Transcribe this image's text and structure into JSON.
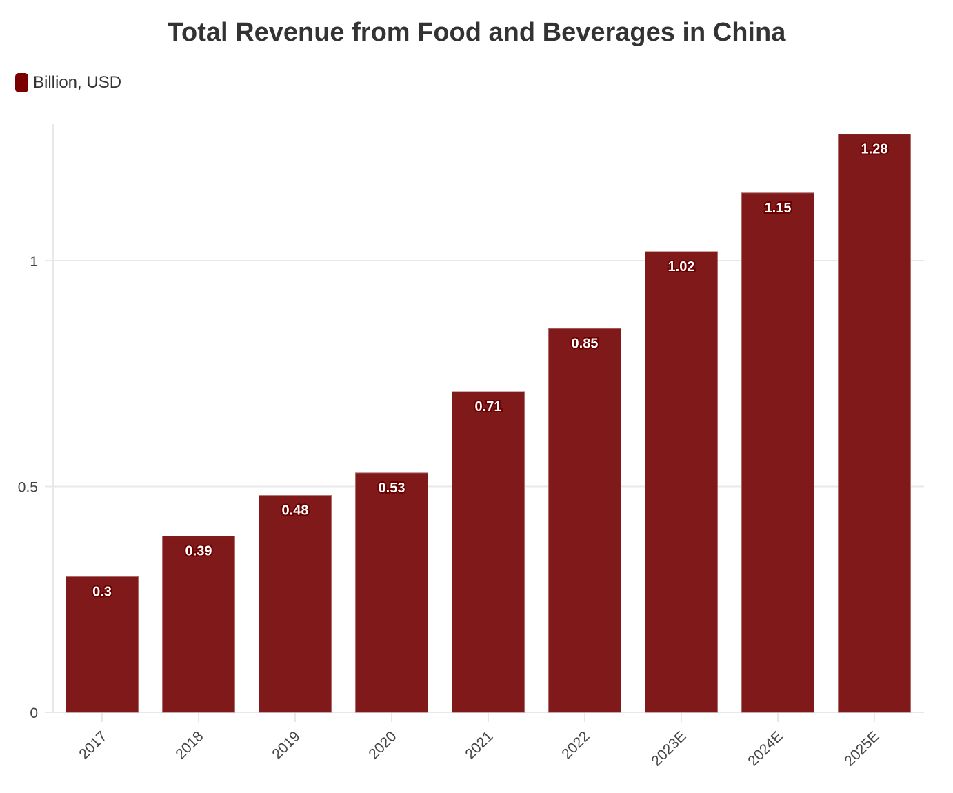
{
  "chart_data": {
    "type": "bar",
    "title": "Total Revenue from Food and Beverages in China",
    "legend": [
      {
        "name": "Billion, USD",
        "color": "#7a0000"
      }
    ],
    "legend_position": "top-left",
    "categories": [
      "2017",
      "2018",
      "2019",
      "2020",
      "2021",
      "2022",
      "2023E",
      "2024E",
      "2025E"
    ],
    "series": [
      {
        "name": "Billion, USD",
        "values": [
          0.3,
          0.39,
          0.48,
          0.53,
          0.71,
          0.85,
          1.02,
          1.15,
          1.28
        ]
      }
    ],
    "yticks": [
      "0",
      "0.5",
      "1"
    ],
    "ylim": [
      0,
      1.3
    ],
    "grid": true,
    "bar_color": "#801919",
    "xlabel": "",
    "ylabel": ""
  }
}
